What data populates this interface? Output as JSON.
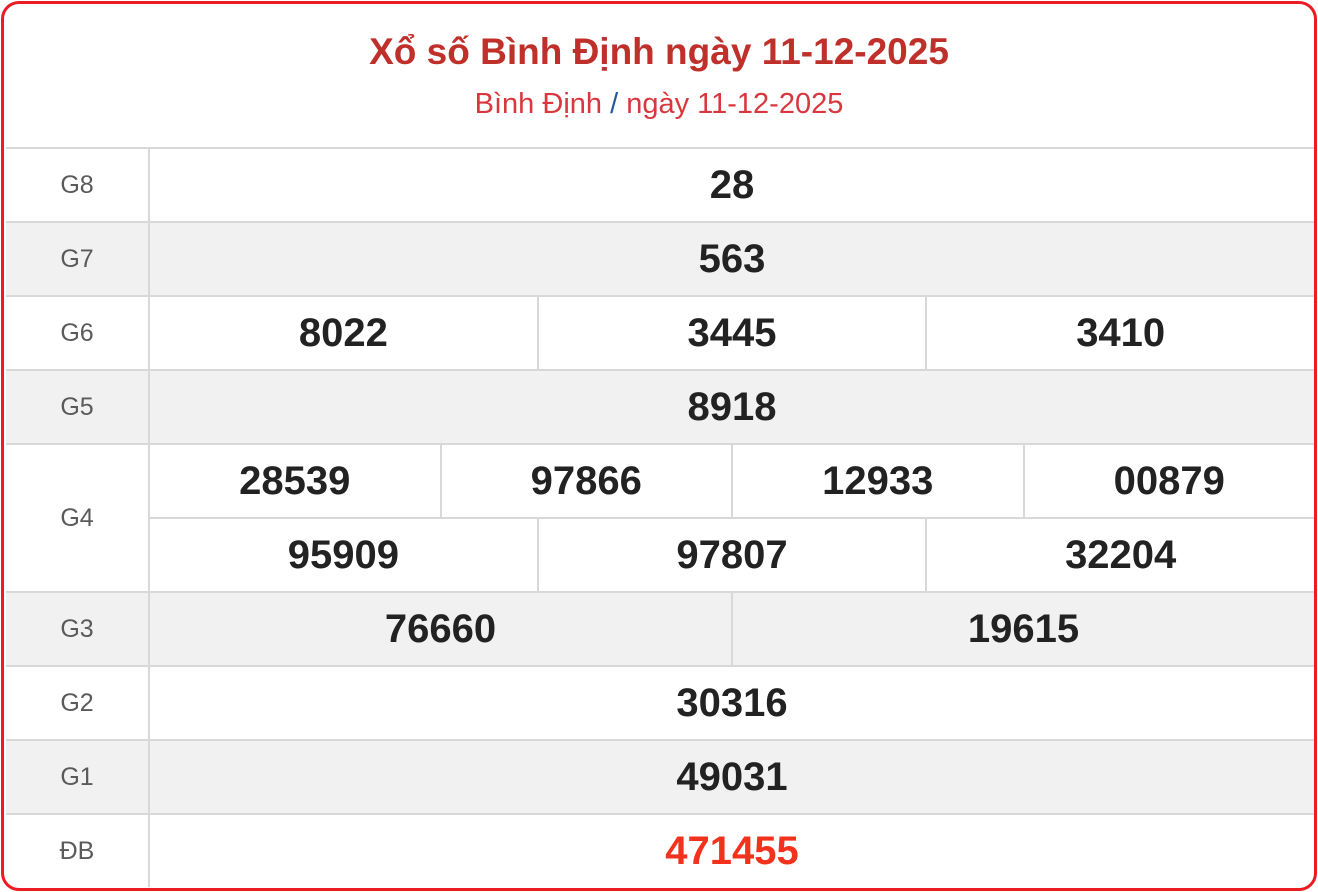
{
  "header": {
    "title": "Xổ số Bình Định ngày 11-12-2025",
    "breadcrumb_province": "Bình Định",
    "breadcrumb_separator": "/",
    "breadcrumb_date": "ngày 11-12-2025"
  },
  "colors": {
    "border": "#ec1c24",
    "title": "#c0302b",
    "special_prize": "#f3321d",
    "stripe": "#f1f1f1"
  },
  "prizes": [
    {
      "label": "G8",
      "lines": [
        [
          "28"
        ]
      ]
    },
    {
      "label": "G7",
      "lines": [
        [
          "563"
        ]
      ]
    },
    {
      "label": "G6",
      "lines": [
        [
          "8022",
          "3445",
          "3410"
        ]
      ]
    },
    {
      "label": "G5",
      "lines": [
        [
          "8918"
        ]
      ]
    },
    {
      "label": "G4",
      "lines": [
        [
          "28539",
          "97866",
          "12933",
          "00879"
        ],
        [
          "95909",
          "97807",
          "32204"
        ]
      ]
    },
    {
      "label": "G3",
      "lines": [
        [
          "76660",
          "19615"
        ]
      ]
    },
    {
      "label": "G2",
      "lines": [
        [
          "30316"
        ]
      ]
    },
    {
      "label": "G1",
      "lines": [
        [
          "49031"
        ]
      ]
    },
    {
      "label": "ĐB",
      "lines": [
        [
          "471455"
        ]
      ]
    }
  ]
}
